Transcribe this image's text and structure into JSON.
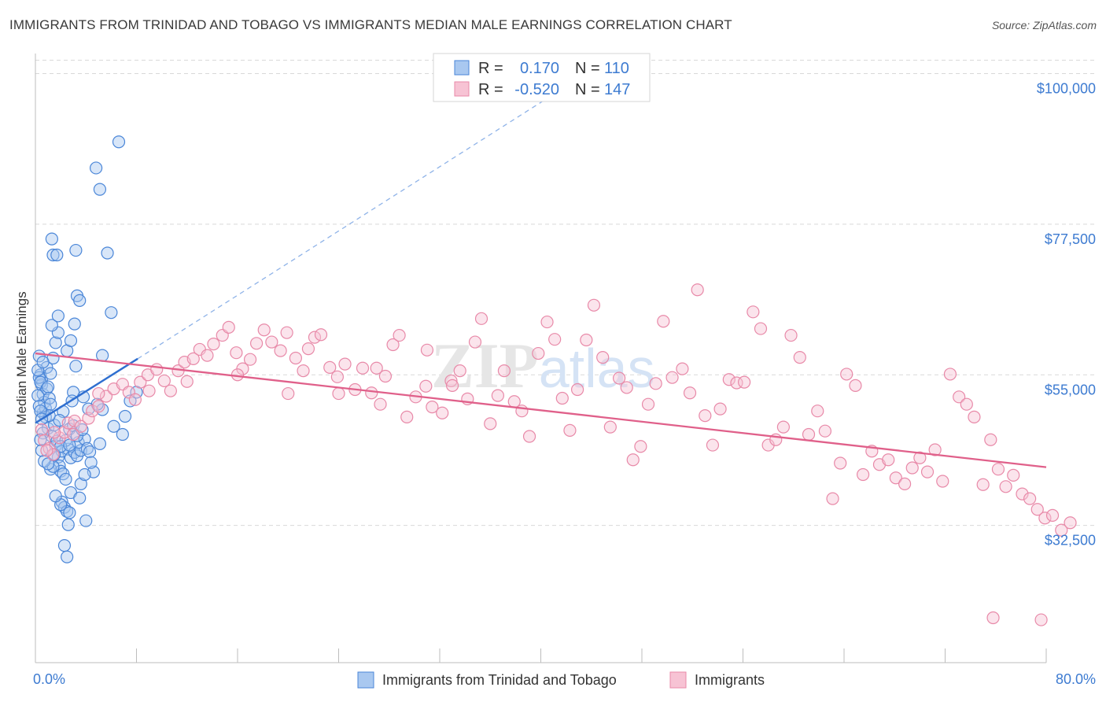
{
  "title": "IMMIGRANTS FROM TRINIDAD AND TOBAGO VS IMMIGRANTS MEDIAN MALE EARNINGS CORRELATION CHART",
  "source": "Source: ZipAtlas.com",
  "watermark": "ZIPatlas",
  "legend_top": {
    "rows": [
      {
        "r_label": "R =",
        "r_value": "0.170",
        "n_label": "N =",
        "n_value": "110"
      },
      {
        "r_label": "R =",
        "r_value": "-0.520",
        "n_label": "N =",
        "n_value": "147"
      }
    ]
  },
  "legend_bottom": [
    "Immigrants from Trinidad and Tobago",
    "Immigrants"
  ],
  "colors": {
    "blue_fill": "#a9c8f0",
    "blue_stroke": "#4a86d8",
    "blue_line": "#2f6fd0",
    "pink_fill": "#f7c3d4",
    "pink_stroke": "#e889a8",
    "pink_line": "#e0608a",
    "tick_text": "#3d7bd1",
    "grid": "#d9d9d9"
  },
  "chart_data": {
    "type": "scatter",
    "title": "IMMIGRANTS FROM TRINIDAD AND TOBAGO VS IMMIGRANTS MEDIAN MALE EARNINGS CORRELATION CHART",
    "xlabel": "",
    "ylabel": "Median Male Earnings",
    "xlim": [
      0,
      80
    ],
    "ylim": [
      12000,
      103000
    ],
    "x_tick_labels": [
      "0.0%",
      "80.0%"
    ],
    "y_ticks": [
      32500,
      55000,
      77500,
      100000
    ],
    "y_tick_labels": [
      "$32,500",
      "$55,000",
      "$77,500",
      "$100,000"
    ],
    "grid": true,
    "series": [
      {
        "name": "Immigrants from Trinidad and Tobago",
        "color": "#4a86d8",
        "trend": {
          "x0": 0,
          "y0": 47800,
          "x1": 8.1,
          "y1": 57400,
          "dash_to_x": 44,
          "dash_to_y": 100500
        },
        "points": [
          [
            0.3,
            57.8
          ],
          [
            0.4,
            55.0
          ],
          [
            0.5,
            54.2
          ],
          [
            0.5,
            53.5
          ],
          [
            0.6,
            52.1
          ],
          [
            0.7,
            50.9
          ],
          [
            0.6,
            49.3
          ],
          [
            0.8,
            50.0
          ],
          [
            0.3,
            54.6
          ],
          [
            0.4,
            53.9
          ],
          [
            0.9,
            52.9
          ],
          [
            1.0,
            53.2
          ],
          [
            1.1,
            51.5
          ],
          [
            1.2,
            50.6
          ],
          [
            0.8,
            48.7
          ],
          [
            1.0,
            47.0
          ],
          [
            1.3,
            45.8
          ],
          [
            1.5,
            47.5
          ],
          [
            1.6,
            44.4
          ],
          [
            1.7,
            45.1
          ],
          [
            1.8,
            42.7
          ],
          [
            1.9,
            41.4
          ],
          [
            2.0,
            40.6
          ],
          [
            2.2,
            40.2
          ],
          [
            1.2,
            40.9
          ],
          [
            1.4,
            41.3
          ],
          [
            2.1,
            43.6
          ],
          [
            2.6,
            43.9
          ],
          [
            2.8,
            42.6
          ],
          [
            3.1,
            43.4
          ],
          [
            3.3,
            42.9
          ],
          [
            3.6,
            43.7
          ],
          [
            2.4,
            45.2
          ],
          [
            2.7,
            46.9
          ],
          [
            3.0,
            47.4
          ],
          [
            3.4,
            44.9
          ],
          [
            3.9,
            45.4
          ],
          [
            4.1,
            44.0
          ],
          [
            4.3,
            43.5
          ],
          [
            4.6,
            40.5
          ],
          [
            0.9,
            56.1
          ],
          [
            1.2,
            55.2
          ],
          [
            1.4,
            57.5
          ],
          [
            1.6,
            59.8
          ],
          [
            1.8,
            61.3
          ],
          [
            2.5,
            58.6
          ],
          [
            2.8,
            60.1
          ],
          [
            3.2,
            56.3
          ],
          [
            1.3,
            62.4
          ],
          [
            1.8,
            63.8
          ],
          [
            3.1,
            62.6
          ],
          [
            3.3,
            66.8
          ],
          [
            3.5,
            66.1
          ],
          [
            5.3,
            57.9
          ],
          [
            6.0,
            64.3
          ],
          [
            5.7,
            73.2
          ],
          [
            1.4,
            72.9
          ],
          [
            1.7,
            72.9
          ],
          [
            3.2,
            73.6
          ],
          [
            4.8,
            85.9
          ],
          [
            5.1,
            82.7
          ],
          [
            6.6,
            89.8
          ],
          [
            1.3,
            75.3
          ],
          [
            3.6,
            38.7
          ],
          [
            3.9,
            40.1
          ],
          [
            2.4,
            39.4
          ],
          [
            2.8,
            37.4
          ],
          [
            3.5,
            36.6
          ],
          [
            2.1,
            36.0
          ],
          [
            2.3,
            35.2
          ],
          [
            2.5,
            34.6
          ],
          [
            2.6,
            32.6
          ],
          [
            2.3,
            29.5
          ],
          [
            2.5,
            27.8
          ],
          [
            2.0,
            35.6
          ],
          [
            2.7,
            34.4
          ],
          [
            1.6,
            36.9
          ],
          [
            4.0,
            33.2
          ],
          [
            4.4,
            41.9
          ],
          [
            5.1,
            44.7
          ],
          [
            6.2,
            47.3
          ],
          [
            6.9,
            46.1
          ],
          [
            7.1,
            48.8
          ],
          [
            7.5,
            51.1
          ],
          [
            8.0,
            52.4
          ],
          [
            5.3,
            49.8
          ],
          [
            4.9,
            50.6
          ],
          [
            4.2,
            49.9
          ],
          [
            3.8,
            51.7
          ],
          [
            3.0,
            52.4
          ],
          [
            2.9,
            51.1
          ],
          [
            2.2,
            49.5
          ],
          [
            1.9,
            48.2
          ],
          [
            1.1,
            48.9
          ],
          [
            0.6,
            46.3
          ],
          [
            0.4,
            45.3
          ],
          [
            0.5,
            43.7
          ],
          [
            0.7,
            42.1
          ],
          [
            1.0,
            41.7
          ],
          [
            1.5,
            43.1
          ],
          [
            2.0,
            44.3
          ],
          [
            2.7,
            44.5
          ],
          [
            3.3,
            45.9
          ],
          [
            3.7,
            46.8
          ],
          [
            0.2,
            51.9
          ],
          [
            0.3,
            50.3
          ],
          [
            0.4,
            49.6
          ],
          [
            0.5,
            48.4
          ],
          [
            0.2,
            55.7
          ],
          [
            0.6,
            56.9
          ]
        ]
      },
      {
        "name": "Immigrants",
        "color": "#e889a8",
        "trend": {
          "x0": 0,
          "y0": 58200,
          "x1": 80,
          "y1": 41200
        },
        "points": [
          [
            0.5,
            46.8
          ],
          [
            0.7,
            45.2
          ],
          [
            1.1,
            44.0
          ],
          [
            1.4,
            43.1
          ],
          [
            1.9,
            45.6
          ],
          [
            2.3,
            46.4
          ],
          [
            2.6,
            47.8
          ],
          [
            3.1,
            48.1
          ],
          [
            3.6,
            47.3
          ],
          [
            4.2,
            48.5
          ],
          [
            4.5,
            49.6
          ],
          [
            5.0,
            50.3
          ],
          [
            5.6,
            51.8
          ],
          [
            6.2,
            52.9
          ],
          [
            6.9,
            53.6
          ],
          [
            7.4,
            52.4
          ],
          [
            7.9,
            51.3
          ],
          [
            8.3,
            53.9
          ],
          [
            8.9,
            55.0
          ],
          [
            9.6,
            55.8
          ],
          [
            10.2,
            54.1
          ],
          [
            10.7,
            52.6
          ],
          [
            11.3,
            55.6
          ],
          [
            11.8,
            56.9
          ],
          [
            12.5,
            57.4
          ],
          [
            13.0,
            58.8
          ],
          [
            13.6,
            57.9
          ],
          [
            14.1,
            59.6
          ],
          [
            14.8,
            60.9
          ],
          [
            15.3,
            62.1
          ],
          [
            15.9,
            58.3
          ],
          [
            16.4,
            55.9
          ],
          [
            17.0,
            57.3
          ],
          [
            17.5,
            59.7
          ],
          [
            18.1,
            61.7
          ],
          [
            18.7,
            59.9
          ],
          [
            19.4,
            58.6
          ],
          [
            19.9,
            61.3
          ],
          [
            20.6,
            57.5
          ],
          [
            21.2,
            55.6
          ],
          [
            21.6,
            58.9
          ],
          [
            22.1,
            60.6
          ],
          [
            22.6,
            61.0
          ],
          [
            23.3,
            56.1
          ],
          [
            23.9,
            54.7
          ],
          [
            24.5,
            56.6
          ],
          [
            25.3,
            52.8
          ],
          [
            25.9,
            56.0
          ],
          [
            26.6,
            52.3
          ],
          [
            27.3,
            50.6
          ],
          [
            27.7,
            54.8
          ],
          [
            28.3,
            59.5
          ],
          [
            28.8,
            60.9
          ],
          [
            29.4,
            48.7
          ],
          [
            30.1,
            51.7
          ],
          [
            30.9,
            53.3
          ],
          [
            31.4,
            50.2
          ],
          [
            32.2,
            49.3
          ],
          [
            32.9,
            54.1
          ],
          [
            33.6,
            55.6
          ],
          [
            34.2,
            51.4
          ],
          [
            34.8,
            59.9
          ],
          [
            35.3,
            63.4
          ],
          [
            36.0,
            47.7
          ],
          [
            36.6,
            51.9
          ],
          [
            37.1,
            55.6
          ],
          [
            37.9,
            51.0
          ],
          [
            38.5,
            49.6
          ],
          [
            39.1,
            45.8
          ],
          [
            39.8,
            58.2
          ],
          [
            40.5,
            62.9
          ],
          [
            41.1,
            60.3
          ],
          [
            41.7,
            51.5
          ],
          [
            42.3,
            46.7
          ],
          [
            42.9,
            52.8
          ],
          [
            43.6,
            60.2
          ],
          [
            44.2,
            65.4
          ],
          [
            44.9,
            57.6
          ],
          [
            45.5,
            47.2
          ],
          [
            46.2,
            54.5
          ],
          [
            46.8,
            53.1
          ],
          [
            47.3,
            42.3
          ],
          [
            47.9,
            44.3
          ],
          [
            48.5,
            50.6
          ],
          [
            49.1,
            53.7
          ],
          [
            49.7,
            63.0
          ],
          [
            50.4,
            54.6
          ],
          [
            51.2,
            55.9
          ],
          [
            51.8,
            52.3
          ],
          [
            52.4,
            67.7
          ],
          [
            53.0,
            48.9
          ],
          [
            53.6,
            44.5
          ],
          [
            54.2,
            49.9
          ],
          [
            54.9,
            54.3
          ],
          [
            55.5,
            53.8
          ],
          [
            56.1,
            53.9
          ],
          [
            56.8,
            64.4
          ],
          [
            57.4,
            61.9
          ],
          [
            58.0,
            44.5
          ],
          [
            58.6,
            45.3
          ],
          [
            59.2,
            47.2
          ],
          [
            59.8,
            60.9
          ],
          [
            60.5,
            57.6
          ],
          [
            61.2,
            46.1
          ],
          [
            61.9,
            49.6
          ],
          [
            62.5,
            46.6
          ],
          [
            63.1,
            36.5
          ],
          [
            63.7,
            41.8
          ],
          [
            64.2,
            55.1
          ],
          [
            64.9,
            53.4
          ],
          [
            65.5,
            40.1
          ],
          [
            66.2,
            43.6
          ],
          [
            66.8,
            41.6
          ],
          [
            67.5,
            42.3
          ],
          [
            68.1,
            39.6
          ],
          [
            68.8,
            38.7
          ],
          [
            69.4,
            41.1
          ],
          [
            70.0,
            42.6
          ],
          [
            70.6,
            40.5
          ],
          [
            71.2,
            43.8
          ],
          [
            71.8,
            39.1
          ],
          [
            72.4,
            55.1
          ],
          [
            73.1,
            51.7
          ],
          [
            73.7,
            50.6
          ],
          [
            74.3,
            48.7
          ],
          [
            75.0,
            38.6
          ],
          [
            75.6,
            45.3
          ],
          [
            76.2,
            40.9
          ],
          [
            76.8,
            38.3
          ],
          [
            77.4,
            40.0
          ],
          [
            78.1,
            37.2
          ],
          [
            78.7,
            36.5
          ],
          [
            79.3,
            34.9
          ],
          [
            79.9,
            33.6
          ],
          [
            80.5,
            34.0
          ],
          [
            81.2,
            31.8
          ],
          [
            81.9,
            32.9
          ],
          [
            75.8,
            18.7
          ],
          [
            79.6,
            18.4
          ],
          [
            33.0,
            53.4
          ],
          [
            31.0,
            58.7
          ],
          [
            27.0,
            56.0
          ],
          [
            24.0,
            52.2
          ],
          [
            20.0,
            52.2
          ],
          [
            16.0,
            55.0
          ],
          [
            12.0,
            54.0
          ],
          [
            9.0,
            52.6
          ],
          [
            5.0,
            52.2
          ],
          [
            3.0,
            46.1
          ],
          [
            1.5,
            46.4
          ],
          [
            0.9,
            43.7
          ]
        ]
      }
    ]
  }
}
